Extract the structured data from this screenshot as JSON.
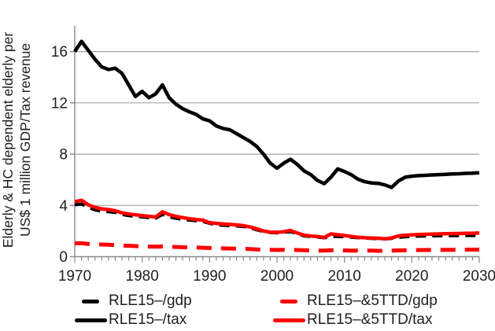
{
  "chart_data": {
    "type": "line",
    "title": "",
    "ylabel": [
      "Elderly & HC dependent elderly per",
      "US$ 1 million GDP/Tax revenue"
    ],
    "xlabel": "",
    "xlim": [
      1970,
      2030
    ],
    "ylim": [
      0,
      18
    ],
    "x_major_ticks": [
      1970,
      1980,
      1990,
      2000,
      2010,
      2020,
      2030
    ],
    "x_minor_tick_interval": 1,
    "y_ticks": [
      0,
      4,
      8,
      12,
      16
    ],
    "y_gridlines": [
      4,
      8,
      12,
      16
    ],
    "grid": "horizontal-major",
    "legend_position": "bottom",
    "x_step": 1,
    "series": [
      {
        "name": "RLE15–/gdp",
        "color": "#000000",
        "style": "dashed",
        "values": [
          4.05,
          4.1,
          3.85,
          3.65,
          3.55,
          3.5,
          3.45,
          3.3,
          3.2,
          3.15,
          3.1,
          3.05,
          3.0,
          3.3,
          3.1,
          3.0,
          2.9,
          2.85,
          2.8,
          2.75,
          2.6,
          2.5,
          2.45,
          2.42,
          2.4,
          2.35,
          2.25,
          2.1,
          1.95,
          1.88,
          1.85,
          1.9,
          1.95,
          1.8,
          1.62,
          1.57,
          1.53,
          1.47,
          1.55,
          1.58,
          1.55,
          1.52,
          1.48,
          1.45,
          1.42,
          1.4,
          1.38,
          1.42,
          1.5,
          1.55,
          1.58,
          1.6,
          1.61,
          1.62,
          1.63,
          1.63,
          1.64,
          1.64,
          1.65,
          1.65,
          1.65
        ]
      },
      {
        "name": "RLE15–&5TTD/gdp",
        "color": "#FF0000",
        "style": "dashed",
        "values": [
          1.05,
          1.05,
          1.0,
          0.97,
          0.95,
          0.93,
          0.9,
          0.87,
          0.85,
          0.83,
          0.8,
          0.79,
          0.78,
          0.8,
          0.78,
          0.76,
          0.74,
          0.72,
          0.71,
          0.7,
          0.68,
          0.66,
          0.65,
          0.64,
          0.63,
          0.62,
          0.6,
          0.57,
          0.55,
          0.54,
          0.53,
          0.54,
          0.55,
          0.52,
          0.5,
          0.49,
          0.48,
          0.47,
          0.5,
          0.5,
          0.49,
          0.48,
          0.48,
          0.47,
          0.47,
          0.46,
          0.46,
          0.47,
          0.49,
          0.5,
          0.51,
          0.52,
          0.52,
          0.53,
          0.53,
          0.54,
          0.54,
          0.54,
          0.55,
          0.55,
          0.55
        ]
      },
      {
        "name": "RLE15–/tax",
        "color": "#000000",
        "style": "solid",
        "values": [
          16.0,
          16.8,
          16.1,
          15.4,
          14.8,
          14.6,
          14.7,
          14.3,
          13.4,
          12.5,
          12.9,
          12.4,
          12.7,
          13.4,
          12.4,
          11.9,
          11.55,
          11.3,
          11.1,
          10.75,
          10.6,
          10.2,
          10.0,
          9.9,
          9.6,
          9.3,
          9.0,
          8.6,
          8.0,
          7.3,
          6.9,
          7.3,
          7.6,
          7.2,
          6.7,
          6.4,
          5.95,
          5.7,
          6.2,
          6.85,
          6.65,
          6.4,
          6.05,
          5.85,
          5.75,
          5.72,
          5.6,
          5.4,
          5.9,
          6.2,
          6.28,
          6.32,
          6.35,
          6.38,
          6.4,
          6.43,
          6.45,
          6.47,
          6.5,
          6.52,
          6.55
        ]
      },
      {
        "name": "RLE15–&5TTD/tax",
        "color": "#FF0000",
        "style": "solid",
        "values": [
          4.3,
          4.4,
          4.05,
          3.85,
          3.72,
          3.68,
          3.58,
          3.42,
          3.33,
          3.27,
          3.2,
          3.15,
          3.1,
          3.5,
          3.28,
          3.15,
          3.05,
          2.97,
          2.9,
          2.85,
          2.65,
          2.6,
          2.55,
          2.52,
          2.48,
          2.42,
          2.32,
          2.18,
          2.0,
          1.92,
          1.9,
          1.95,
          2.05,
          1.85,
          1.68,
          1.62,
          1.57,
          1.5,
          1.78,
          1.72,
          1.65,
          1.58,
          1.52,
          1.48,
          1.46,
          1.44,
          1.4,
          1.46,
          1.62,
          1.67,
          1.7,
          1.73,
          1.75,
          1.76,
          1.78,
          1.79,
          1.8,
          1.81,
          1.82,
          1.83,
          1.85
        ]
      }
    ]
  },
  "colors": {
    "background": "#FFFFFF",
    "gridline": "#A6A6A6",
    "axis": "#898989",
    "tick": "#898989",
    "text": "#1F1F1F",
    "black_series": "#000000",
    "red_series": "#FF0000"
  }
}
